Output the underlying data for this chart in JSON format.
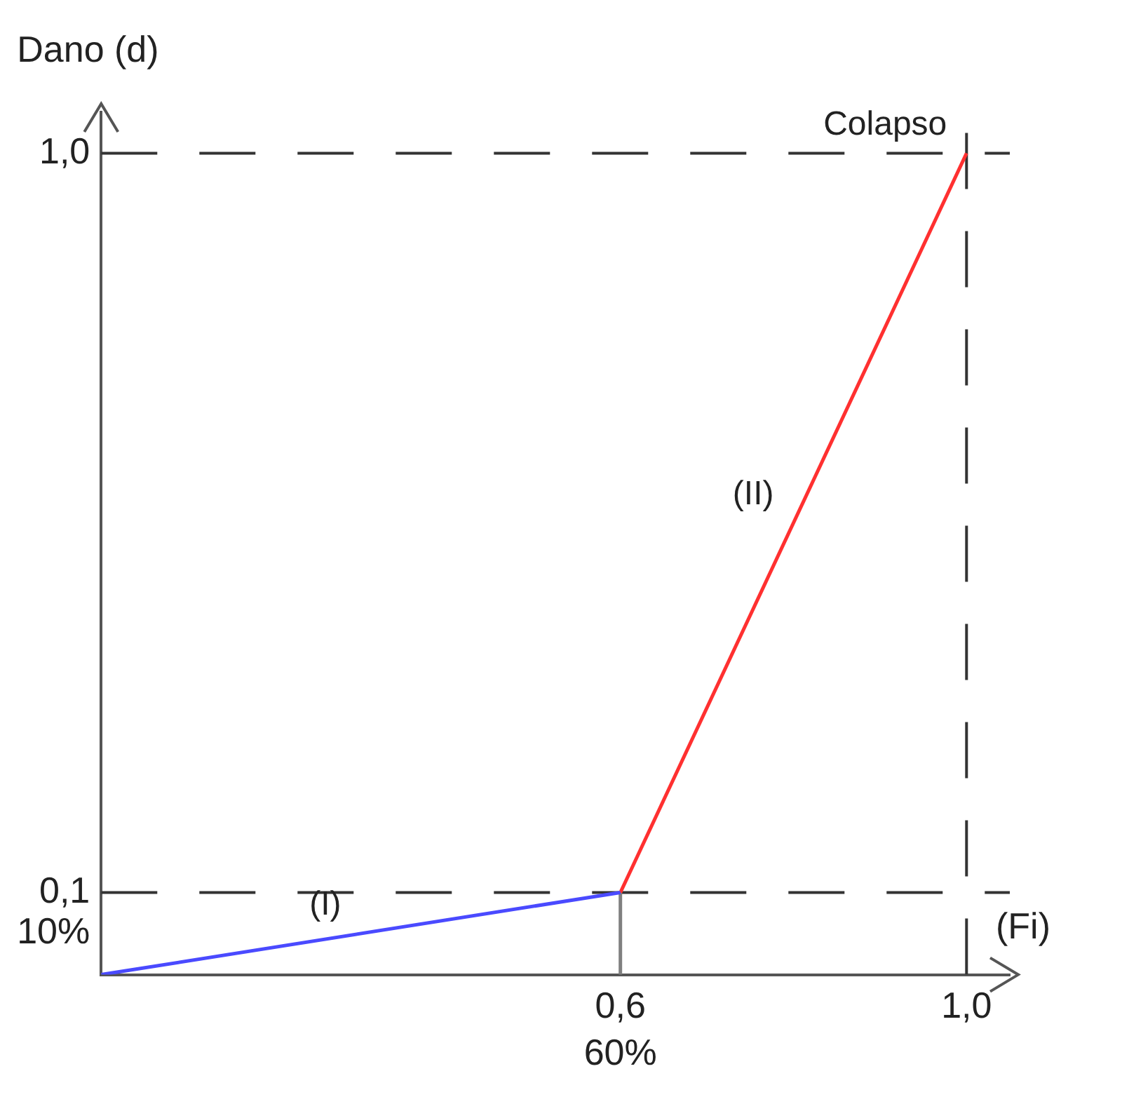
{
  "chart_data": {
    "type": "line",
    "xlabel": "(Fi)",
    "ylabel": "Dano (d)",
    "xlim": [
      0,
      1.05
    ],
    "ylim": [
      0,
      1.05
    ],
    "xticks": [
      {
        "value": 0.6,
        "label": "0,6"
      },
      {
        "value": 1,
        "label": "1,0"
      }
    ],
    "yticks": [
      {
        "value": 0.1,
        "label": "0,1"
      },
      {
        "value": 1,
        "label": "1,0"
      }
    ],
    "series": [
      {
        "x": [
          0,
          0.6
        ],
        "values": [
          0,
          0.1
        ],
        "color": "#4a4aff"
      },
      {
        "x": [
          0.6,
          1
        ],
        "values": [
          0.1,
          1
        ],
        "color": "#ff3030"
      },
      {
        "x": [
          0.6,
          0.6
        ],
        "values": [
          0,
          0.1
        ],
        "color": "#808080"
      }
    ],
    "ref_lines": [
      {
        "axis": "y",
        "value": 0.1,
        "color": "#333333",
        "line_style": "dashed",
        "label": "10%"
      },
      {
        "axis": "y",
        "value": 1,
        "color": "#333333",
        "line_style": "dashed"
      },
      {
        "axis": "x",
        "value": 1,
        "color": "#333333",
        "line_style": "dashed"
      }
    ],
    "annotations": [
      {
        "text": "Colapso",
        "x": 1,
        "y": 1
      },
      {
        "text": "(I)",
        "x": 0.3,
        "y": 0.05
      },
      {
        "text": "(II)",
        "x": 0.8,
        "y": 0.55
      },
      "60%"
    ],
    "grid": false,
    "legend": false,
    "marker": "none",
    "line_style": "solid"
  }
}
